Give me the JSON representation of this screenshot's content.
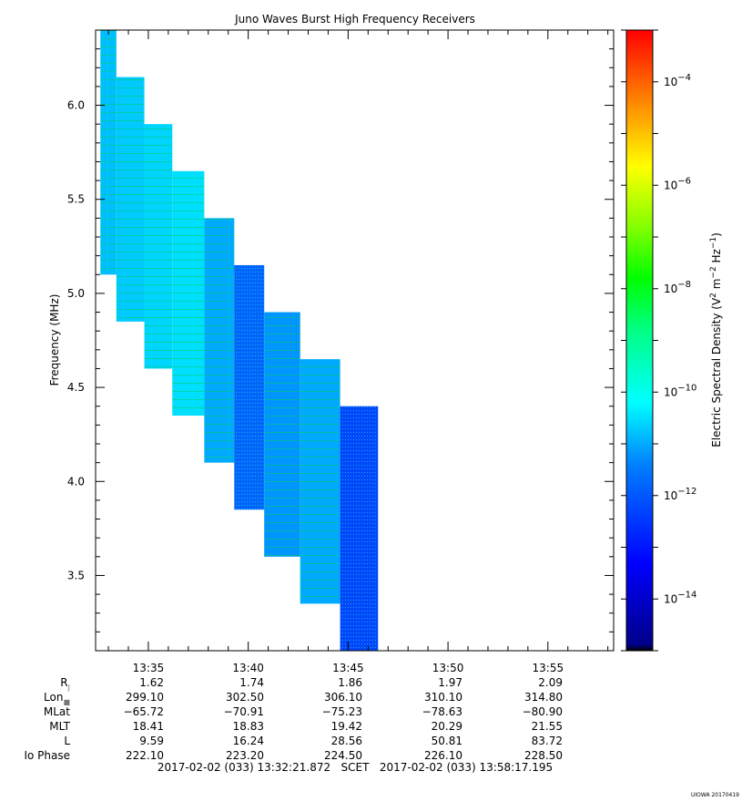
{
  "chart_data": {
    "type": "heatmap",
    "title": "Juno Waves Burst High Frequency Receivers",
    "ylabel": "Frequency (MHz)",
    "ylim": [
      3.1,
      6.4
    ],
    "yticks": [
      "3.5",
      "4.0",
      "4.5",
      "5.0",
      "5.5",
      "6.0"
    ],
    "xlim_minutes": [
      32.36,
      58.29
    ],
    "xticks": [
      "13:35",
      "13:40",
      "13:45",
      "13:50",
      "13:55"
    ],
    "colorbar": {
      "label": "Electric Spectral Density (V^2 m^-2 Hz^-1)",
      "scale": "log",
      "range_exp": [
        -15.0,
        -3.0
      ],
      "tick_labels": [
        "10^-4",
        "10^-6",
        "10^-8",
        "10^-10",
        "10^-12",
        "10^-14"
      ],
      "colors": [
        "#000080",
        "#0000ff",
        "#0080ff",
        "#00ffff",
        "#00ff80",
        "#00ff00",
        "#80ff00",
        "#ffff00",
        "#ff8000",
        "#ff0000"
      ]
    },
    "blocks": [
      {
        "t0": 32.6,
        "t1": 33.4,
        "f_lo": 5.1,
        "f_hi": 6.4,
        "log_density": -10.8
      },
      {
        "t0": 33.4,
        "t1": 34.8,
        "f_lo": 4.85,
        "f_hi": 6.15,
        "log_density": -10.7
      },
      {
        "t0": 34.8,
        "t1": 36.2,
        "f_lo": 4.6,
        "f_hi": 5.9,
        "log_density": -10.6
      },
      {
        "t0": 36.2,
        "t1": 37.8,
        "f_lo": 4.35,
        "f_hi": 5.65,
        "log_density": -10.5
      },
      {
        "t0": 37.8,
        "t1": 39.3,
        "f_lo": 4.1,
        "f_hi": 5.4,
        "log_density": -11.0
      },
      {
        "t0": 39.3,
        "t1": 40.8,
        "f_lo": 3.85,
        "f_hi": 5.15,
        "log_density": -11.8
      },
      {
        "t0": 40.8,
        "t1": 42.6,
        "f_lo": 3.6,
        "f_hi": 4.9,
        "log_density": -11.2
      },
      {
        "t0": 42.6,
        "t1": 44.6,
        "f_lo": 3.35,
        "f_hi": 4.65,
        "log_density": -11.0
      },
      {
        "t0": 44.6,
        "t1": 46.5,
        "f_lo": 3.1,
        "f_hi": 4.4,
        "log_density": -12.3
      }
    ],
    "ephemeris": {
      "rows": [
        {
          "label": "R",
          "sub": "J",
          "values": [
            "1.62",
            "1.74",
            "1.86",
            "1.97",
            "2.09"
          ]
        },
        {
          "label": "Lon",
          "sub": "■",
          "values": [
            "299.10",
            "302.50",
            "306.10",
            "310.10",
            "314.80"
          ]
        },
        {
          "label": "MLat",
          "sub": "",
          "values": [
            "-65.72",
            "-70.91",
            "-75.23",
            "-78.63",
            "-80.90"
          ]
        },
        {
          "label": "MLT",
          "sub": "",
          "values": [
            "18.41",
            "18.83",
            "19.42",
            "20.29",
            "21.55"
          ]
        },
        {
          "label": "L",
          "sub": "",
          "values": [
            "9.59",
            "16.24",
            "28.56",
            "50.81",
            "83.72"
          ]
        },
        {
          "label": "Io Phase",
          "sub": "",
          "values": [
            "222.10",
            "223.20",
            "224.50",
            "226.10",
            "228.50"
          ]
        }
      ]
    },
    "time_range": "2017-02-02 (033) 13:32:21.872   SCET   2017-02-02 (033) 13:58:17.195",
    "footer_tag": "UIOWA 20170419"
  }
}
